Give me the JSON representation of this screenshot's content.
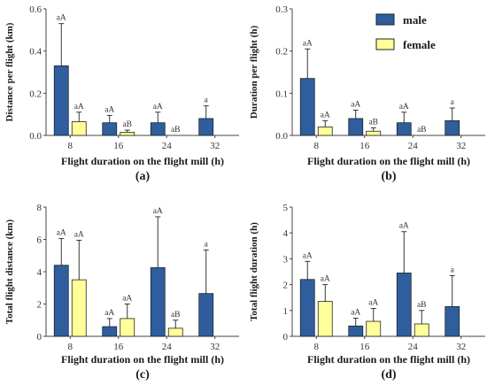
{
  "legend": {
    "male": "male",
    "female": "female"
  },
  "colors": {
    "male": "#2e5e9e",
    "female": "#ffff99",
    "outline": "#222222",
    "axis": "#444444"
  },
  "chart_data": [
    {
      "type": "bar",
      "panel_label": "(a)",
      "ylabel": "Distance per flight (km)",
      "xlabel": "Flight duration on the flight mill (h)",
      "categories": [
        "8",
        "16",
        "24",
        "32"
      ],
      "ylim": [
        0,
        0.6
      ],
      "yticks": [
        "0.0",
        "0.2",
        "0.4",
        "0.6"
      ],
      "series": [
        {
          "name": "male",
          "values": [
            0.33,
            0.06,
            0.06,
            0.08
          ],
          "errors": [
            0.2,
            0.035,
            0.05,
            0.06
          ],
          "labels": [
            "aA",
            "aA",
            "aA",
            "a"
          ]
        },
        {
          "name": "female",
          "values": [
            0.065,
            0.015,
            0.0,
            null
          ],
          "errors": [
            0.045,
            0.01,
            0.0,
            null
          ],
          "labels": [
            "aA",
            "aB",
            "aB",
            null
          ]
        }
      ]
    },
    {
      "type": "bar",
      "panel_label": "(b)",
      "ylabel": "Duration per flight (h)",
      "xlabel": "Flight duration on the flight mill (h)",
      "categories": [
        "8",
        "16",
        "24",
        "32"
      ],
      "ylim": [
        0,
        0.3
      ],
      "yticks": [
        "0.0",
        "0.1",
        "0.2",
        "0.3"
      ],
      "series": [
        {
          "name": "male",
          "values": [
            0.135,
            0.04,
            0.03,
            0.035
          ],
          "errors": [
            0.07,
            0.02,
            0.025,
            0.03
          ],
          "labels": [
            "aA",
            "aA",
            "aA",
            "a"
          ]
        },
        {
          "name": "female",
          "values": [
            0.02,
            0.01,
            0.0,
            null
          ],
          "errors": [
            0.015,
            0.008,
            0.0,
            null
          ],
          "labels": [
            "aA",
            "aB",
            "aB",
            null
          ]
        }
      ]
    },
    {
      "type": "bar",
      "panel_label": "(c)",
      "ylabel": "Total flight distance (km)",
      "xlabel": "Flight duration on the flight mill (h)",
      "categories": [
        "8",
        "16",
        "24",
        "32"
      ],
      "ylim": [
        0,
        8
      ],
      "yticks": [
        "0",
        "2",
        "4",
        "6",
        "8"
      ],
      "series": [
        {
          "name": "male",
          "values": [
            4.4,
            0.6,
            4.25,
            2.65
          ],
          "errors": [
            1.65,
            0.5,
            3.15,
            2.7
          ],
          "labels": [
            "aA",
            "aA",
            "aA",
            "a"
          ]
        },
        {
          "name": "female",
          "values": [
            3.5,
            1.1,
            0.5,
            null
          ],
          "errors": [
            2.45,
            0.9,
            0.5,
            null
          ],
          "labels": [
            "aA",
            "aA",
            "aB",
            null
          ]
        }
      ]
    },
    {
      "type": "bar",
      "panel_label": "(d)",
      "ylabel": "Total flight duration (h)",
      "xlabel": "Flight duration on the flight mill (h)",
      "categories": [
        "8",
        "16",
        "24",
        "32"
      ],
      "ylim": [
        0,
        5
      ],
      "yticks": [
        "0",
        "1",
        "2",
        "3",
        "4",
        "5"
      ],
      "series": [
        {
          "name": "male",
          "values": [
            2.2,
            0.4,
            2.45,
            1.15
          ],
          "errors": [
            0.7,
            0.3,
            1.6,
            1.2
          ],
          "labels": [
            "aA",
            "aA",
            "aA",
            "a"
          ]
        },
        {
          "name": "female",
          "values": [
            1.35,
            0.58,
            0.48,
            null
          ],
          "errors": [
            0.65,
            0.5,
            0.52,
            null
          ],
          "labels": [
            "aA",
            "aA",
            "aB",
            null
          ]
        }
      ]
    }
  ]
}
